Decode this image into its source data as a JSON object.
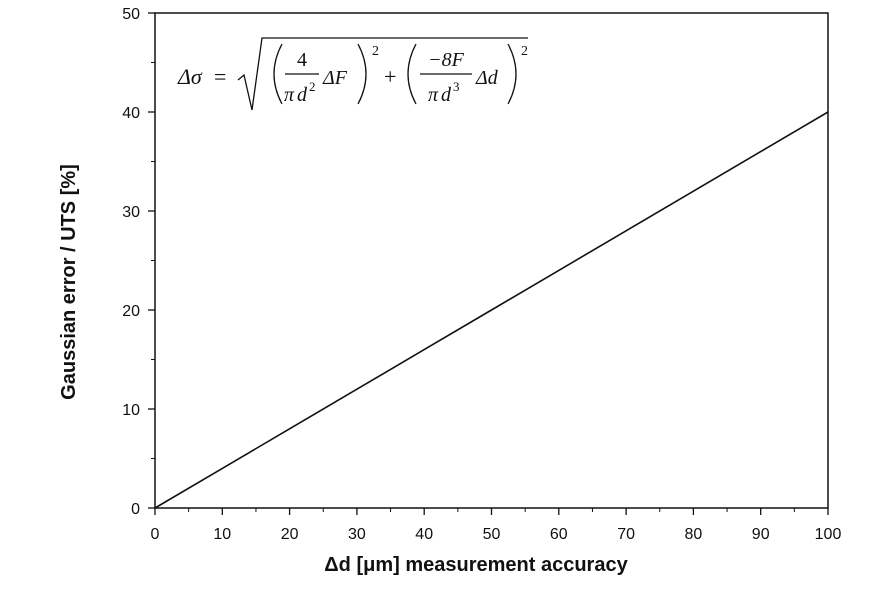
{
  "chart_data": {
    "type": "line",
    "title": "",
    "xlabel": "Δd [μm] measurement accuracy",
    "ylabel": "Gaussian error / UTS [%]",
    "xlim": [
      0,
      100
    ],
    "ylim": [
      0,
      50
    ],
    "x_ticks": [
      0,
      10,
      20,
      30,
      40,
      50,
      60,
      70,
      80,
      90,
      100
    ],
    "y_ticks": [
      0,
      10,
      20,
      30,
      40,
      50
    ],
    "x_tick_labels": [
      "0",
      "10",
      "20",
      "30",
      "40",
      "50",
      "60",
      "70",
      "80",
      "90",
      "100"
    ],
    "y_tick_labels": [
      "0",
      "10",
      "20",
      "30",
      "40",
      "50"
    ],
    "grid": false,
    "series": [
      {
        "x": [
          0,
          10,
          20,
          30,
          40,
          50,
          60,
          70,
          80,
          90,
          100
        ],
        "y": [
          0,
          4,
          8,
          12,
          16,
          20,
          24,
          28,
          32,
          36,
          40
        ],
        "color": "#111111"
      }
    ],
    "annotation": {
      "formula": {
        "lhs": "Δσ",
        "equals": "=",
        "frac1_num": "4",
        "frac1_den_pi": "π",
        "frac1_den_var": "d",
        "frac1_den_exp": "2",
        "term1": "ΔF",
        "plus": "+",
        "frac2_num": "−8F",
        "frac2_den_pi": "π",
        "frac2_den_var": "d",
        "frac2_den_exp": "3",
        "term2": "Δd",
        "outer_exp": "2"
      }
    }
  }
}
